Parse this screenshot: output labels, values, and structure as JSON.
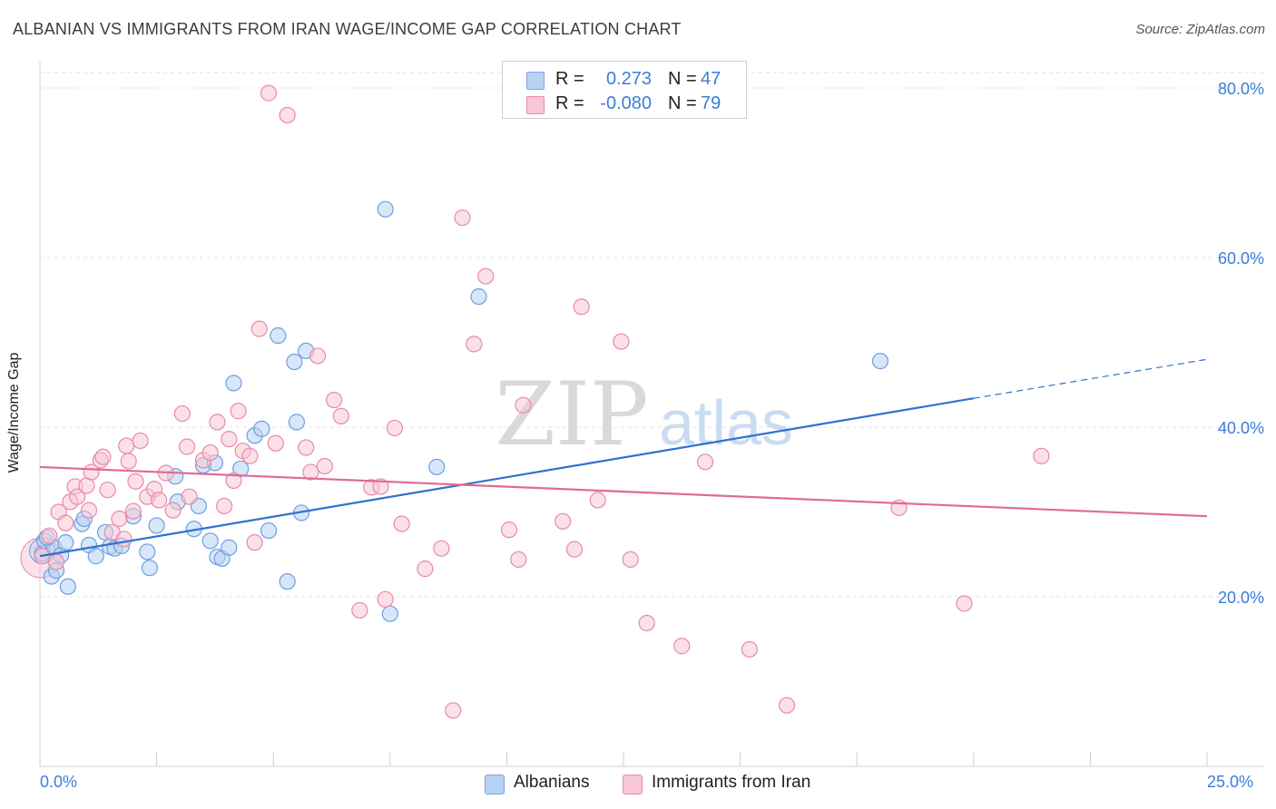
{
  "title": "ALBANIAN VS IMMIGRANTS FROM IRAN WAGE/INCOME GAP CORRELATION CHART",
  "source": "Source: ZipAtlas.com",
  "watermark": {
    "zip": "ZIP",
    "atlas": "atlas"
  },
  "legend": {
    "r_label": "R =",
    "n_label": "N =",
    "rows": [
      {
        "name": "Albanians",
        "r": "0.273",
        "n": "47",
        "fill": "#b8d2f4",
        "stroke": "#7aa6e0"
      },
      {
        "name": "Immigrants from Iran",
        "r": "-0.080",
        "n": "79",
        "fill": "#f8c6d6",
        "stroke": "#e78aa8"
      }
    ]
  },
  "chart_data": {
    "type": "scatter",
    "title": "ALBANIAN VS IMMIGRANTS FROM IRAN WAGE/INCOME GAP CORRELATION CHART",
    "xlabel": "",
    "ylabel": "Wage/Income Gap",
    "xlim": [
      0,
      25
    ],
    "ylim": [
      0,
      80
    ],
    "x_tick_labels": [
      "0.0%",
      "25.0%"
    ],
    "y_ticks": [
      20,
      40,
      60,
      80
    ],
    "y_tick_labels": [
      "20.0%",
      "40.0%",
      "60.0%",
      "80.0%"
    ],
    "grid": true,
    "legend_position": "bottom-center",
    "series": [
      {
        "name": "Albanians",
        "color": "#6a9fe0",
        "line_color": "#2f72d0",
        "trend": {
          "x0": 0,
          "y0": 24.8,
          "x1": 20,
          "y1": 43.4,
          "dashed_to_x": 25,
          "dashed_to_y": 48.0
        },
        "points": [
          [
            0.05,
            25.1
          ],
          [
            0.1,
            26.6
          ],
          [
            0.25,
            22.4
          ],
          [
            0.3,
            25.8
          ],
          [
            0.35,
            23.1
          ],
          [
            0.45,
            24.9
          ],
          [
            0.55,
            26.4
          ],
          [
            0.6,
            21.2
          ],
          [
            0.9,
            28.6
          ],
          [
            0.95,
            29.2
          ],
          [
            1.05,
            26.1
          ],
          [
            1.2,
            24.8
          ],
          [
            1.4,
            27.6
          ],
          [
            1.5,
            25.9
          ],
          [
            1.6,
            25.7
          ],
          [
            1.75,
            26.0
          ],
          [
            2.0,
            29.5
          ],
          [
            2.3,
            25.3
          ],
          [
            2.35,
            23.4
          ],
          [
            2.5,
            28.4
          ],
          [
            2.9,
            34.2
          ],
          [
            2.95,
            31.2
          ],
          [
            3.3,
            28.0
          ],
          [
            3.4,
            30.7
          ],
          [
            3.5,
            35.5
          ],
          [
            3.65,
            26.6
          ],
          [
            3.75,
            35.8
          ],
          [
            3.8,
            24.7
          ],
          [
            3.9,
            24.5
          ],
          [
            4.05,
            25.8
          ],
          [
            4.15,
            45.2
          ],
          [
            4.3,
            35.1
          ],
          [
            4.6,
            39.0
          ],
          [
            4.75,
            39.8
          ],
          [
            4.9,
            27.8
          ],
          [
            5.1,
            50.8
          ],
          [
            5.3,
            21.8
          ],
          [
            5.45,
            47.7
          ],
          [
            5.5,
            40.6
          ],
          [
            5.6,
            29.9
          ],
          [
            5.7,
            49.0
          ],
          [
            7.4,
            65.7
          ],
          [
            7.5,
            18.0
          ],
          [
            8.5,
            35.3
          ],
          [
            9.4,
            55.4
          ],
          [
            18.0,
            47.8
          ],
          [
            0.15,
            27.0
          ]
        ]
      },
      {
        "name": "Immigrants from Iran",
        "color": "#ea8fb0",
        "line_color": "#e06a95",
        "trend": {
          "x0": 0,
          "y0": 35.3,
          "x1": 25,
          "y1": 29.5
        },
        "points": [
          [
            0.05,
            24.8
          ],
          [
            0.2,
            27.2
          ],
          [
            0.35,
            24.1
          ],
          [
            0.4,
            30.0
          ],
          [
            0.55,
            28.7
          ],
          [
            0.65,
            31.2
          ],
          [
            0.75,
            33.0
          ],
          [
            0.8,
            31.8
          ],
          [
            1.0,
            33.1
          ],
          [
            1.05,
            30.2
          ],
          [
            1.1,
            34.7
          ],
          [
            1.3,
            36.1
          ],
          [
            1.35,
            36.5
          ],
          [
            1.45,
            32.6
          ],
          [
            1.55,
            27.6
          ],
          [
            1.7,
            29.2
          ],
          [
            1.8,
            26.8
          ],
          [
            1.85,
            37.8
          ],
          [
            1.9,
            36.0
          ],
          [
            2.0,
            30.1
          ],
          [
            2.05,
            33.6
          ],
          [
            2.15,
            38.4
          ],
          [
            2.3,
            31.8
          ],
          [
            2.45,
            32.7
          ],
          [
            2.55,
            31.4
          ],
          [
            2.7,
            34.6
          ],
          [
            2.85,
            30.2
          ],
          [
            3.05,
            41.6
          ],
          [
            3.15,
            37.7
          ],
          [
            3.2,
            31.8
          ],
          [
            3.5,
            36.1
          ],
          [
            3.65,
            37.0
          ],
          [
            3.8,
            40.6
          ],
          [
            3.95,
            30.7
          ],
          [
            4.05,
            38.6
          ],
          [
            4.15,
            33.7
          ],
          [
            4.25,
            41.9
          ],
          [
            4.35,
            37.2
          ],
          [
            4.5,
            36.6
          ],
          [
            4.6,
            26.4
          ],
          [
            4.7,
            51.6
          ],
          [
            4.9,
            79.4
          ],
          [
            5.05,
            38.1
          ],
          [
            5.3,
            76.8
          ],
          [
            5.7,
            37.6
          ],
          [
            5.8,
            34.7
          ],
          [
            5.95,
            48.4
          ],
          [
            6.1,
            35.4
          ],
          [
            6.3,
            43.2
          ],
          [
            6.45,
            41.3
          ],
          [
            6.85,
            18.4
          ],
          [
            7.1,
            32.9
          ],
          [
            7.3,
            33.0
          ],
          [
            7.4,
            19.7
          ],
          [
            7.6,
            39.9
          ],
          [
            7.75,
            28.6
          ],
          [
            8.25,
            23.3
          ],
          [
            8.6,
            25.7
          ],
          [
            8.85,
            6.6
          ],
          [
            9.05,
            64.7
          ],
          [
            9.3,
            49.8
          ],
          [
            9.55,
            57.8
          ],
          [
            10.05,
            27.9
          ],
          [
            10.25,
            24.4
          ],
          [
            10.35,
            42.6
          ],
          [
            11.2,
            28.9
          ],
          [
            11.45,
            25.6
          ],
          [
            11.6,
            54.2
          ],
          [
            11.95,
            31.4
          ],
          [
            12.45,
            50.1
          ],
          [
            12.65,
            24.4
          ],
          [
            13.0,
            16.9
          ],
          [
            13.75,
            14.2
          ],
          [
            14.25,
            35.9
          ],
          [
            15.2,
            13.8
          ],
          [
            18.4,
            30.5
          ],
          [
            19.8,
            19.2
          ],
          [
            21.45,
            36.6
          ],
          [
            16.0,
            7.2
          ]
        ]
      }
    ]
  }
}
